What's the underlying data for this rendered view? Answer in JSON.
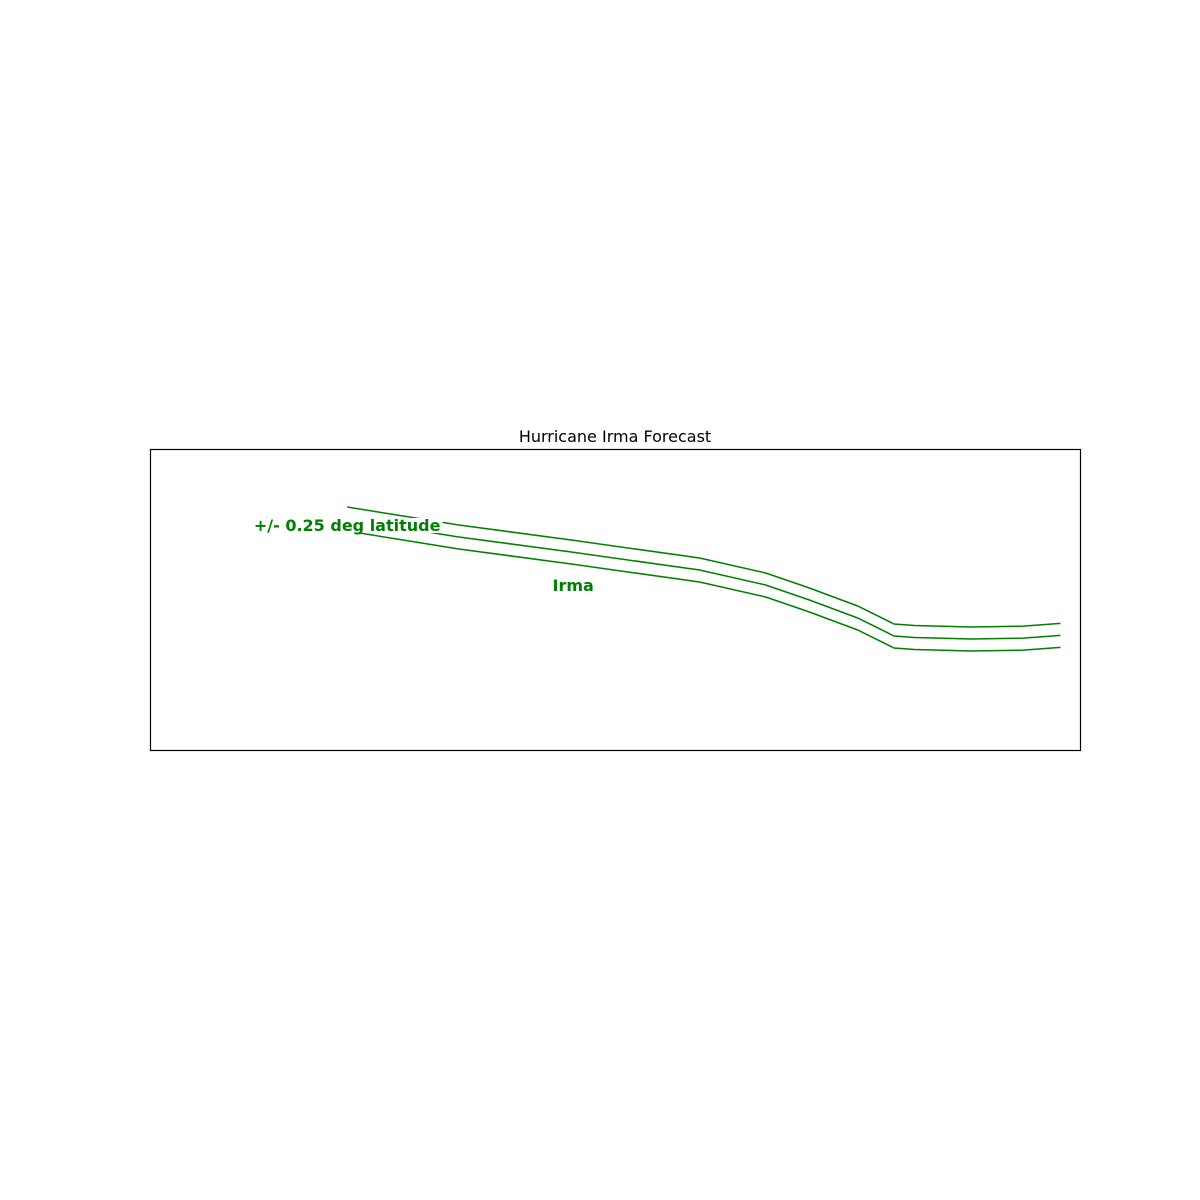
{
  "chart_data": {
    "type": "line",
    "title": "Hurricane Irma Forecast",
    "xlabel": "",
    "ylabel": "",
    "xlim": [
      0,
      1
    ],
    "ylim": [
      0,
      1
    ],
    "grid": false,
    "track_color": "#008000",
    "series": [
      {
        "name": "Irma",
        "x": [
          0.212,
          0.272,
          0.332,
          0.453,
          0.591,
          0.662,
          0.709,
          0.761,
          0.8,
          0.822,
          0.883,
          0.939,
          0.979
        ],
        "y": [
          0.77,
          0.74,
          0.71,
          0.66,
          0.6,
          0.55,
          0.5,
          0.44,
          0.38,
          0.375,
          0.37,
          0.373,
          0.382
        ]
      }
    ],
    "band_offset": 0.04,
    "annotations": [
      {
        "text": "+/- 0.25 deg latitude",
        "x": 0.212,
        "y": 0.73,
        "align": "middle",
        "color": "#008000"
      },
      {
        "text": "Irma",
        "x": 0.455,
        "y": 0.53,
        "align": "middle",
        "color": "#008000"
      }
    ]
  }
}
